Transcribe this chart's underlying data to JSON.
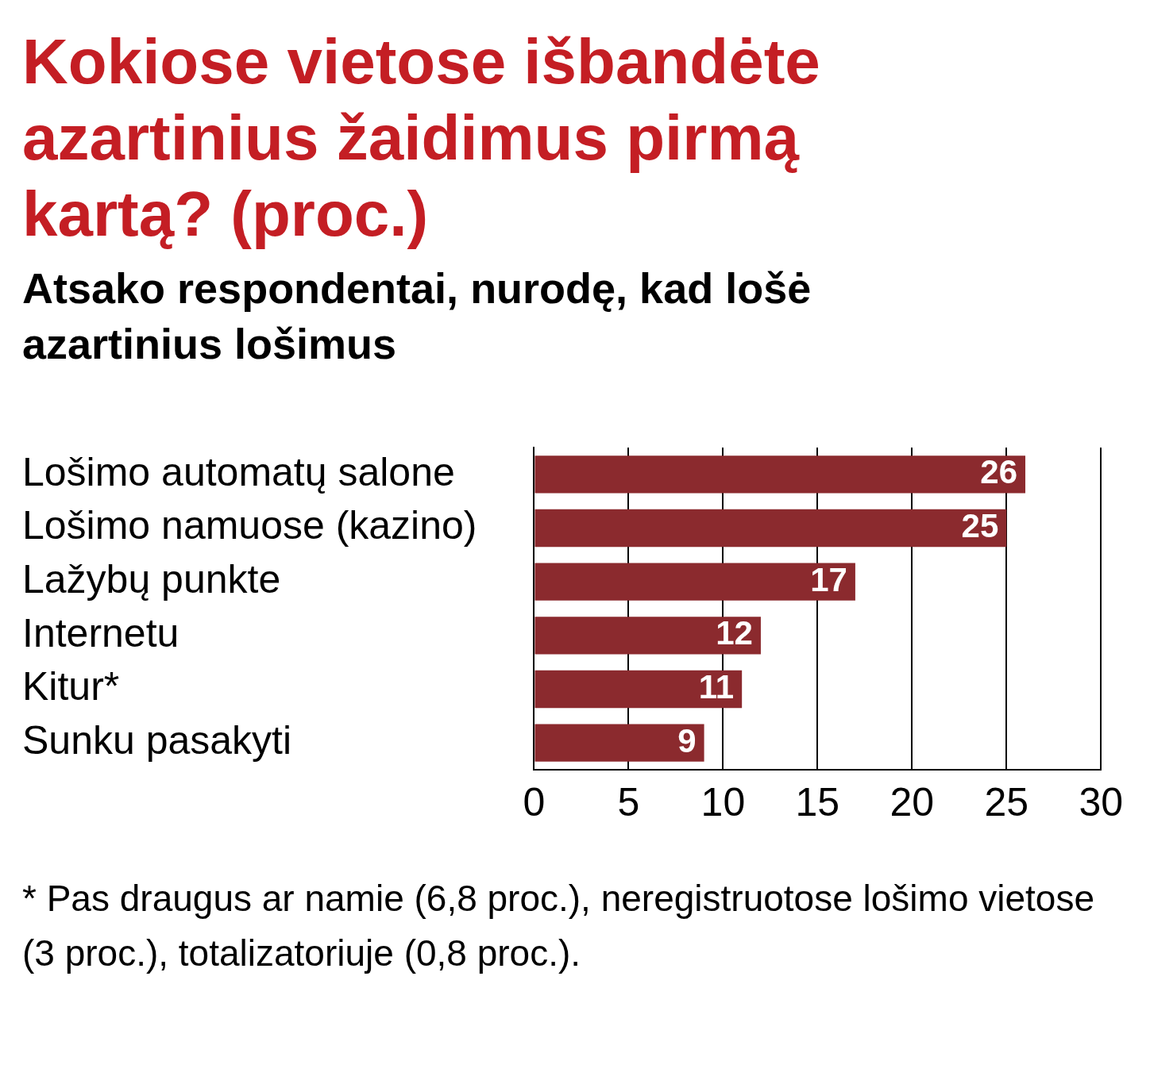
{
  "chart_data": {
    "type": "bar",
    "orientation": "horizontal",
    "title": "Kokiose vietose išbandėte azartinius žaidimus pirmą kartą? (proc.)",
    "subtitle": "Atsako respondentai, nurodę, kad lošė azartinius lošimus",
    "categories": [
      "Lošimo automatų salone",
      "Lošimo namuose (kazino)",
      "Lažybų punkte",
      "Internetu",
      "Kitur*",
      "Sunku pasakyti"
    ],
    "values": [
      26,
      25,
      17,
      12,
      11,
      9
    ],
    "color": "#8b2a2e",
    "xlim": [
      0,
      30
    ],
    "xticks": [
      0,
      5,
      10,
      15,
      20,
      25,
      30
    ],
    "grid": "x",
    "legend": false,
    "data_labels": true,
    "annotations": [
      "* Pas draugus ar namie (6,8 proc.), neregistruotose lošimo vietose (3 proc.), totalizatoriuje (0,8 proc.)."
    ]
  }
}
